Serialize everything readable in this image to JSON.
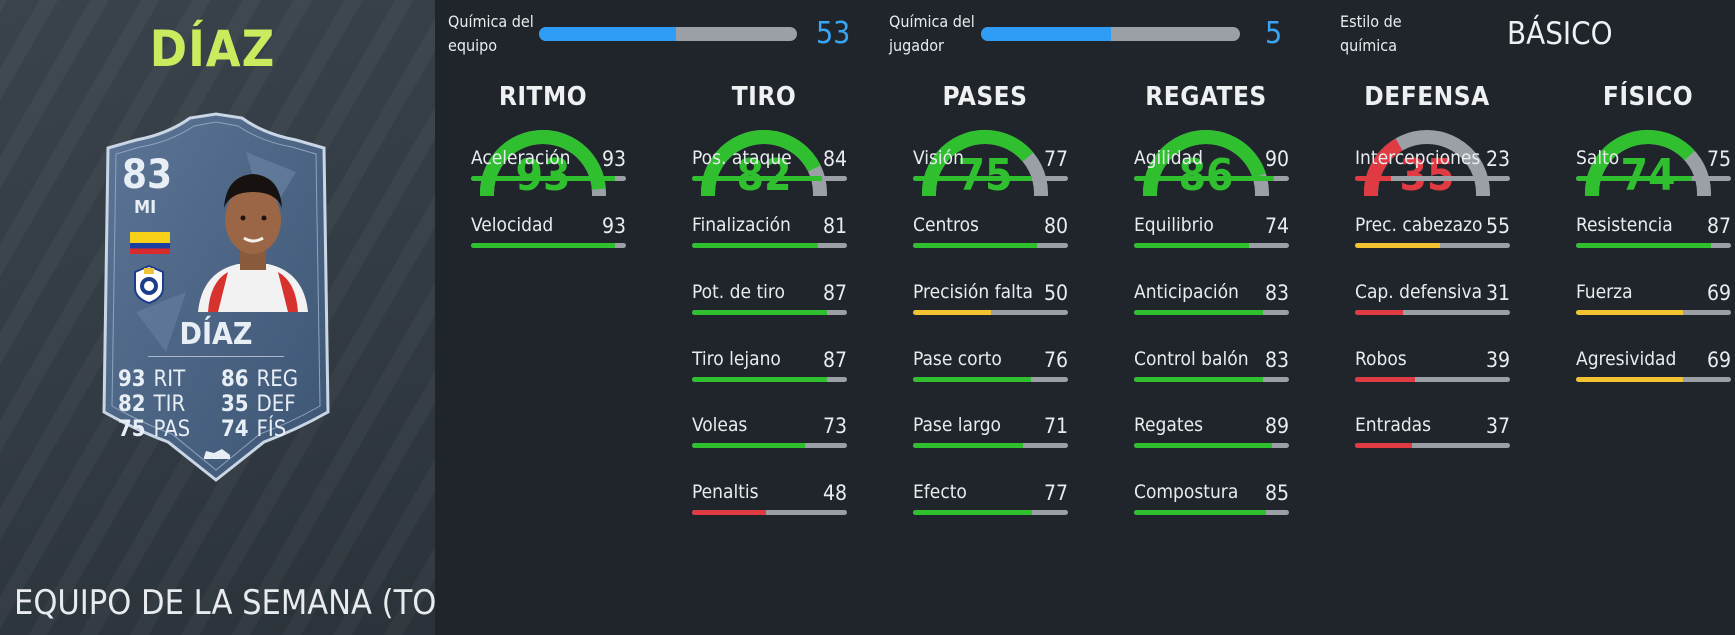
{
  "player": {
    "name": "DÍAZ",
    "card": {
      "rating": "83",
      "position": "MI",
      "name": "DÍAZ",
      "stats": [
        {
          "value": "93",
          "label": "RIT"
        },
        {
          "value": "82",
          "label": "TIR"
        },
        {
          "value": "75",
          "label": "PAS"
        },
        {
          "value": "86",
          "label": "REG"
        },
        {
          "value": "35",
          "label": "DEF"
        },
        {
          "value": "74",
          "label": "FÍS"
        }
      ]
    },
    "edition": "EQUIPO DE LA SEMANA (TOTW)"
  },
  "chemistry": {
    "team": {
      "label_line1": "Química del",
      "label_line2": "equipo",
      "value": "53",
      "fraction": 0.53
    },
    "player": {
      "label_line1": "Química del",
      "label_line2": "jugador",
      "value": "5",
      "fraction": 0.5
    },
    "style": {
      "label_line1": "Estilo de",
      "label_line2": "química",
      "value": "BÁSICO"
    }
  },
  "colors": {
    "good": "#2fbf2f",
    "medium": "#f3c332",
    "bad": "#e03a42",
    "track": "#9aa0a6",
    "accent": "#2f9cf5",
    "title": "#c8ec5e"
  },
  "columns": [
    {
      "title": "RITMO",
      "value": 93,
      "display": "93",
      "stats": [
        {
          "name": "Aceleración",
          "value": 93,
          "display": "93"
        },
        {
          "name": "Velocidad",
          "value": 93,
          "display": "93"
        }
      ]
    },
    {
      "title": "TIRO",
      "value": 82,
      "display": "82",
      "stats": [
        {
          "name": "Pos. ataque",
          "value": 84,
          "display": "84"
        },
        {
          "name": "Finalización",
          "value": 81,
          "display": "81"
        },
        {
          "name": "Pot. de tiro",
          "value": 87,
          "display": "87"
        },
        {
          "name": "Tiro lejano",
          "value": 87,
          "display": "87"
        },
        {
          "name": "Voleas",
          "value": 73,
          "display": "73"
        },
        {
          "name": "Penaltis",
          "value": 48,
          "display": "48"
        }
      ]
    },
    {
      "title": "PASES",
      "value": 75,
      "display": "75",
      "stats": [
        {
          "name": "Visión",
          "value": 77,
          "display": "77"
        },
        {
          "name": "Centros",
          "value": 80,
          "display": "80"
        },
        {
          "name": "Precisión falta",
          "value": 50,
          "display": "50"
        },
        {
          "name": "Pase corto",
          "value": 76,
          "display": "76"
        },
        {
          "name": "Pase largo",
          "value": 71,
          "display": "71"
        },
        {
          "name": "Efecto",
          "value": 77,
          "display": "77"
        }
      ]
    },
    {
      "title": "REGATES",
      "value": 86,
      "display": "86",
      "stats": [
        {
          "name": "Agilidad",
          "value": 90,
          "display": "90"
        },
        {
          "name": "Equilibrio",
          "value": 74,
          "display": "74"
        },
        {
          "name": "Anticipación",
          "value": 83,
          "display": "83"
        },
        {
          "name": "Control balón",
          "value": 83,
          "display": "83"
        },
        {
          "name": "Regates",
          "value": 89,
          "display": "89"
        },
        {
          "name": "Compostura",
          "value": 85,
          "display": "85"
        }
      ]
    },
    {
      "title": "DEFENSA",
      "value": 35,
      "display": "35",
      "stats": [
        {
          "name": "Intercepciones",
          "value": 23,
          "display": "23"
        },
        {
          "name": "Prec. cabezazo",
          "value": 55,
          "display": "55"
        },
        {
          "name": "Cap. defensiva",
          "value": 31,
          "display": "31"
        },
        {
          "name": "Robos",
          "value": 39,
          "display": "39"
        },
        {
          "name": "Entradas",
          "value": 37,
          "display": "37"
        }
      ]
    },
    {
      "title": "FÍSICO",
      "value": 74,
      "display": "74",
      "stats": [
        {
          "name": "Salto",
          "value": 75,
          "display": "75"
        },
        {
          "name": "Resistencia",
          "value": 87,
          "display": "87"
        },
        {
          "name": "Fuerza",
          "value": 69,
          "display": "69"
        },
        {
          "name": "Agresividad",
          "value": 69,
          "display": "69"
        }
      ]
    }
  ]
}
